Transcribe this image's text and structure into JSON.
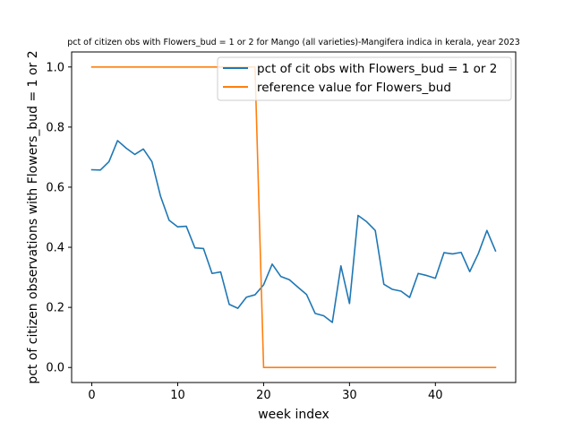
{
  "chart_data": {
    "type": "line",
    "title": "pct of citizen obs with Flowers_bud = 1 or 2 for Mango (all varieties)-Mangifera indica in kerala, year 2023",
    "xlabel": "week index",
    "ylabel": "pct of citizen observations with Flowers_bud = 1 or 2",
    "xlim": [
      -2.35,
      49.35
    ],
    "ylim": [
      -0.05,
      1.05
    ],
    "xticks": [
      0,
      10,
      20,
      30,
      40
    ],
    "xtick_labels": [
      "0",
      "10",
      "20",
      "30",
      "40"
    ],
    "yticks": [
      0.0,
      0.2,
      0.4,
      0.6,
      0.8,
      1.0
    ],
    "ytick_labels": [
      "0.0",
      "0.2",
      "0.4",
      "0.6",
      "0.8",
      "1.0"
    ],
    "grid": false,
    "legend_position": "upper right",
    "series": [
      {
        "name": "pct of cit obs with Flowers_bud = 1 or 2",
        "color": "#1f77b4",
        "x": [
          0,
          1,
          2,
          3,
          4,
          5,
          6,
          7,
          8,
          9,
          10,
          11,
          12,
          13,
          14,
          15,
          16,
          17,
          18,
          19,
          20,
          21,
          22,
          23,
          24,
          25,
          26,
          27,
          28,
          29,
          30,
          31,
          32,
          33,
          34,
          35,
          36,
          37,
          38,
          39,
          40,
          41,
          42,
          43,
          44,
          45,
          46,
          47
        ],
        "y": [
          0.658,
          0.657,
          0.685,
          0.755,
          0.73,
          0.709,
          0.727,
          0.685,
          0.57,
          0.49,
          0.468,
          0.47,
          0.398,
          0.396,
          0.313,
          0.318,
          0.21,
          0.197,
          0.234,
          0.242,
          0.275,
          0.344,
          0.303,
          0.292,
          0.267,
          0.243,
          0.18,
          0.172,
          0.15,
          0.338,
          0.213,
          0.506,
          0.485,
          0.456,
          0.277,
          0.26,
          0.254,
          0.233,
          0.313,
          0.306,
          0.297,
          0.382,
          0.378,
          0.383,
          0.319,
          0.379,
          0.456,
          0.388
        ]
      },
      {
        "name": "reference value for Flowers_bud",
        "color": "#ff7f0e",
        "x": [
          0,
          1,
          2,
          3,
          4,
          5,
          6,
          7,
          8,
          9,
          10,
          11,
          12,
          13,
          14,
          15,
          16,
          17,
          18,
          19,
          20,
          21,
          22,
          23,
          24,
          25,
          26,
          27,
          28,
          29,
          30,
          31,
          32,
          33,
          34,
          35,
          36,
          37,
          38,
          39,
          40,
          41,
          42,
          43,
          44,
          45,
          46,
          47
        ],
        "y": [
          1,
          1,
          1,
          1,
          1,
          1,
          1,
          1,
          1,
          1,
          1,
          1,
          1,
          1,
          1,
          1,
          1,
          1,
          1,
          1,
          0,
          0,
          0,
          0,
          0,
          0,
          0,
          0,
          0,
          0,
          0,
          0,
          0,
          0,
          0,
          0,
          0,
          0,
          0,
          0,
          0,
          0,
          0,
          0,
          0,
          0,
          0,
          0
        ]
      }
    ]
  }
}
